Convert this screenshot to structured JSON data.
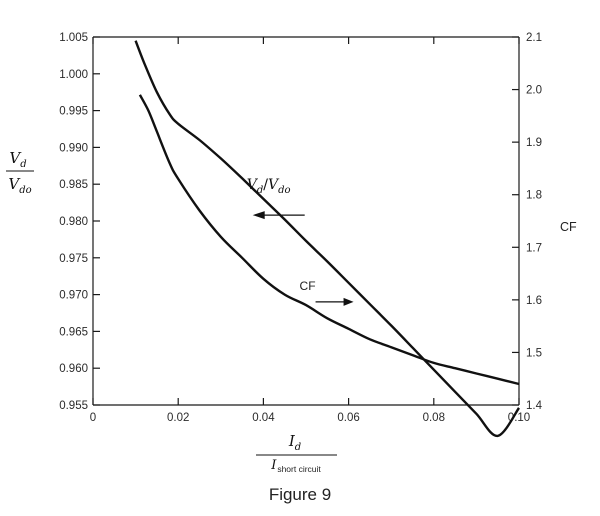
{
  "figure_caption": "Figure 9",
  "chart_data": {
    "type": "line",
    "x_ticks": [
      "0",
      "0.02",
      "0.04",
      "0.06",
      "0.08",
      "0.10"
    ],
    "y_left_ticks": [
      "0.955",
      "0.960",
      "0.965",
      "0.970",
      "0.975",
      "0.980",
      "0.985",
      "0.990",
      "0.995",
      "1.000",
      "1.005"
    ],
    "y_right_ticks": [
      "1.4",
      "1.5",
      "1.6",
      "1.7",
      "1.8",
      "1.9",
      "2.0",
      "2.1"
    ],
    "xlim": [
      0,
      0.1
    ],
    "ylim_left": [
      0.955,
      1.005
    ],
    "ylim_right": [
      1.4,
      2.1
    ],
    "xlabel": {
      "numerator": "I",
      "numerator_sub": "d",
      "denominator": "I",
      "denominator_sub": "short circuit"
    },
    "ylabel_left": {
      "numerator": "V",
      "numerator_sub": "d",
      "denominator": "V",
      "denominator_sub": "do"
    },
    "ylabel_right": "CF",
    "series": [
      {
        "axis": "left",
        "label": {
          "main1": "V",
          "sub1": "d",
          "slash": "/",
          "main2": "V",
          "sub2": "do"
        },
        "x": [
          0.01,
          0.012,
          0.015,
          0.018,
          0.02,
          0.025,
          0.03,
          0.035,
          0.04,
          0.045,
          0.05,
          0.055,
          0.06,
          0.065,
          0.07,
          0.075,
          0.08,
          0.085,
          0.09,
          0.095,
          0.1
        ],
        "y": [
          1.0045,
          1.0015,
          0.9975,
          0.9945,
          0.9932,
          0.991,
          0.9885,
          0.9858,
          0.983,
          0.9802,
          0.9773,
          0.9745,
          0.9716,
          0.9687,
          0.9658,
          0.9628,
          0.9598,
          0.9568,
          0.9538,
          0.9508,
          0.9546
        ]
      },
      {
        "axis": "right",
        "label": {
          "text": "CF"
        },
        "x": [
          0.011,
          0.013,
          0.015,
          0.018,
          0.02,
          0.025,
          0.03,
          0.035,
          0.04,
          0.045,
          0.05,
          0.055,
          0.06,
          0.065,
          0.07,
          0.075,
          0.08,
          0.085,
          0.09,
          0.095,
          0.1
        ],
        "y": [
          1.99,
          1.96,
          1.92,
          1.86,
          1.83,
          1.77,
          1.72,
          1.68,
          1.64,
          1.61,
          1.59,
          1.565,
          1.545,
          1.525,
          1.51,
          1.495,
          1.48,
          1.47,
          1.46,
          1.45,
          1.44
        ]
      }
    ],
    "annotations": [
      {
        "series": 0,
        "arrow_direction": "left",
        "at_x": 0.045,
        "at_y": 0.9808
      },
      {
        "series": 1,
        "arrow_direction": "right",
        "at_x": 0.056,
        "at_y": 1.6
      }
    ]
  }
}
